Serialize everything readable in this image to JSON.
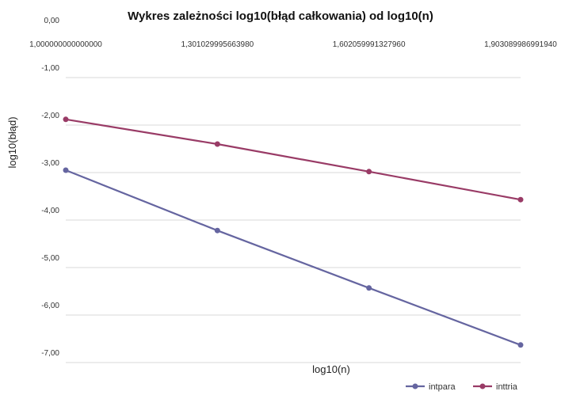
{
  "chart_data": {
    "type": "line",
    "title": "Wykres zależności log10(błąd całkowania) od log10(n)",
    "xlabel": "log10(n)",
    "ylabel": "log10(błąd)",
    "x": [
      1.0,
      1.30102999566398,
      1.60205999132796,
      1.90308998699194
    ],
    "x_tick_labels": [
      "1,000000000000000",
      "1,301029995663980",
      "1,602059991327960",
      "1,903089986991940"
    ],
    "x_axis_position": "top",
    "ylim": [
      -7,
      0
    ],
    "y_ticks": [
      0,
      -1,
      -2,
      -3,
      -4,
      -5,
      -6,
      -7
    ],
    "y_tick_labels": [
      "0,00",
      "-1,00",
      "-2,00",
      "-3,00",
      "-4,00",
      "-5,00",
      "-6,00",
      "-7,00"
    ],
    "grid": true,
    "legend_position": "bottom-right",
    "series": [
      {
        "name": "intpara",
        "color": "#6565a0",
        "values": [
          -2.95,
          -4.22,
          -5.43,
          -6.63
        ]
      },
      {
        "name": "inttria",
        "color": "#993b66",
        "values": [
          -1.88,
          -2.4,
          -2.98,
          -3.57
        ]
      }
    ]
  }
}
